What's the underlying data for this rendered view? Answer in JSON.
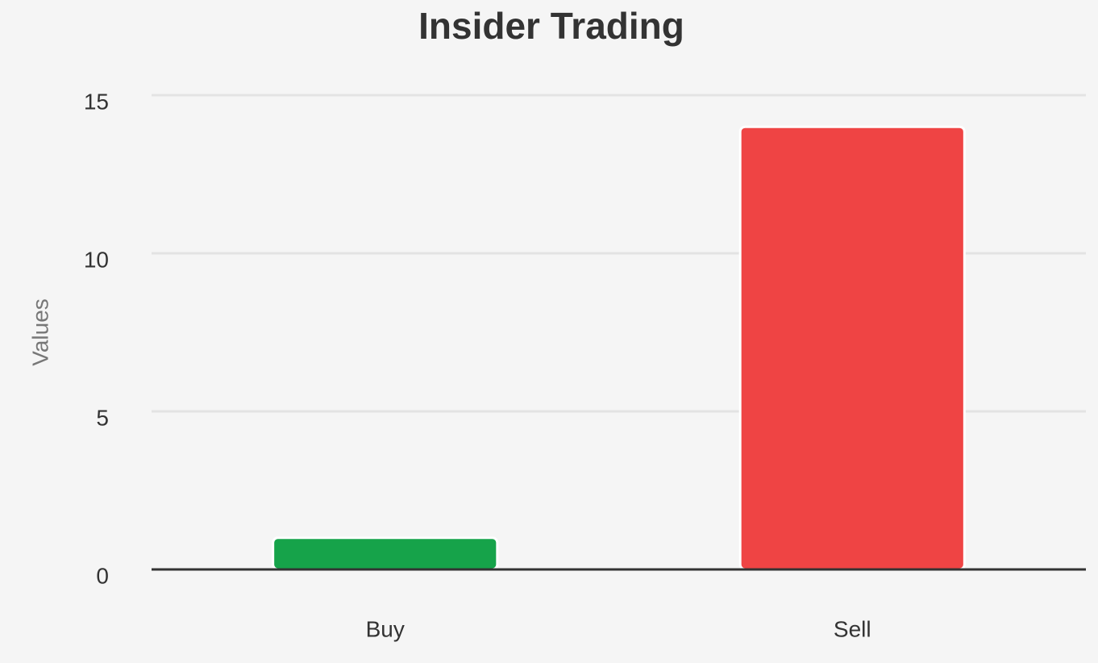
{
  "chart_data": {
    "type": "bar",
    "title": "Insider Trading",
    "y_label": "Values",
    "categories": [
      "Buy",
      "Sell"
    ],
    "values": [
      1,
      14
    ],
    "colors": [
      "#16a34a",
      "#ef4444"
    ],
    "ylim": [
      0,
      15
    ],
    "yticks": [
      0,
      5,
      10,
      15
    ],
    "grid": true
  }
}
